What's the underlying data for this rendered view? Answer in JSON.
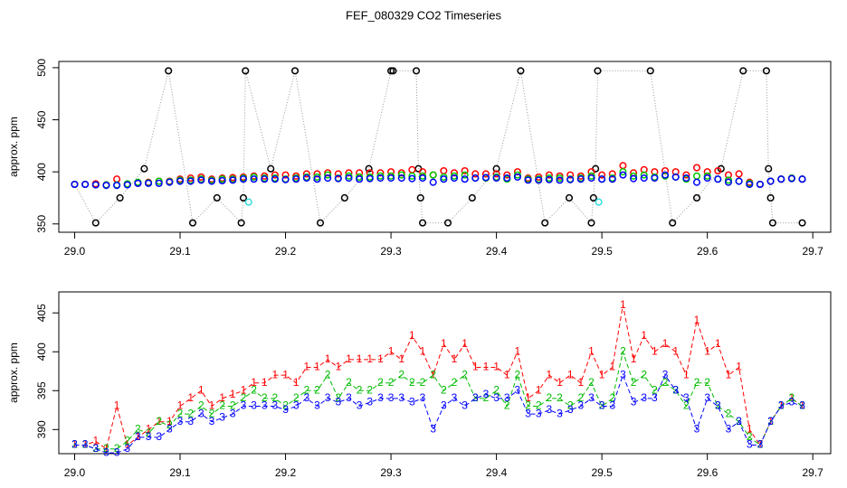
{
  "title": "FEF_080329  CO2 Timeseries",
  "chart_data": [
    {
      "type": "scatter",
      "ylabel": "approx. ppm",
      "xlim": [
        28.985,
        29.717
      ],
      "ylim": [
        342,
        506
      ],
      "xticks": [
        {
          "value": 29,
          "label": "29.0"
        },
        29.1,
        29.2,
        29.3,
        29.4,
        29.5,
        29.6,
        29.7
      ],
      "yticks": [
        350,
        400,
        450,
        500
      ],
      "x": [
        29.0,
        29.01,
        29.02,
        29.03,
        29.04,
        29.05,
        29.06,
        29.07,
        29.08,
        29.09,
        29.1,
        29.11,
        29.12,
        29.13,
        29.14,
        29.15,
        29.16,
        29.17,
        29.18,
        29.19,
        29.2,
        29.21,
        29.22,
        29.23,
        29.24,
        29.25,
        29.26,
        29.27,
        29.28,
        29.29,
        29.3,
        29.31,
        29.32,
        29.33,
        29.34,
        29.35,
        29.36,
        29.37,
        29.38,
        29.39,
        29.4,
        29.41,
        29.42,
        29.43,
        29.44,
        29.45,
        29.46,
        29.47,
        29.48,
        29.49,
        29.5,
        29.51,
        29.52,
        29.53,
        29.54,
        29.55,
        29.56,
        29.57,
        29.58,
        29.59,
        29.6,
        29.61,
        29.62,
        29.63,
        29.64,
        29.65,
        29.66,
        29.67,
        29.68,
        29.69
      ],
      "series": [
        {
          "color": "#000000",
          "linestyle": "dotted",
          "x": [
            29.0,
            29.02,
            29.043,
            29.066,
            29.089,
            29.112,
            29.135,
            29.158,
            29.16,
            29.162,
            29.186,
            29.209,
            29.233,
            29.256,
            29.279,
            29.3,
            29.302,
            29.324,
            29.326,
            29.328,
            29.33,
            29.354,
            29.377,
            29.4,
            29.423,
            29.446,
            29.469,
            29.49,
            29.492,
            29.494,
            29.496,
            29.546,
            29.567,
            29.59,
            29.613,
            29.634,
            29.656,
            29.658,
            29.66,
            29.662,
            29.69
          ],
          "values": [
            388,
            351,
            375,
            403,
            497,
            351,
            375,
            351,
            375,
            497,
            403,
            497,
            351,
            375,
            403,
            497,
            497,
            497,
            403,
            375,
            351,
            351,
            375,
            403,
            497,
            351,
            375,
            351,
            375,
            403,
            497,
            497,
            351,
            375,
            403,
            497,
            497,
            403,
            375,
            351,
            351
          ]
        },
        {
          "color": "#ff0000",
          "values": [
            388,
            388,
            388.5,
            387.5,
            393,
            388,
            389,
            390,
            391,
            391,
            393,
            394,
            395,
            393,
            394,
            394.5,
            395,
            396,
            396,
            397,
            397,
            396,
            398,
            398,
            399,
            398,
            399,
            399,
            399,
            399,
            400,
            399,
            402,
            400,
            397,
            401,
            399,
            401,
            398,
            398,
            398,
            397,
            400,
            394,
            395,
            397,
            396,
            397,
            396,
            400,
            397,
            398,
            406,
            399,
            402,
            400,
            401,
            400,
            397,
            404,
            400,
            401,
            397,
            398,
            390,
            388,
            391,
            393,
            394,
            393
          ]
        },
        {
          "color": "#00cc00",
          "values": [
            388,
            388,
            387.5,
            387.5,
            387.5,
            388.5,
            390,
            389.5,
            391,
            390.5,
            392,
            392,
            393,
            392,
            393,
            393,
            394,
            395,
            394,
            394,
            393,
            394,
            395,
            395,
            397,
            394,
            396,
            395,
            395,
            396,
            396,
            397,
            396,
            396,
            397,
            395,
            396,
            397,
            394,
            394,
            395,
            393,
            397,
            393,
            393,
            394,
            394,
            393,
            394,
            396,
            393,
            394,
            400,
            396,
            397,
            395,
            396,
            395,
            393,
            396,
            396,
            393,
            392,
            391,
            389,
            388,
            391,
            393,
            394,
            393
          ]
        },
        {
          "color": "#0000ff",
          "values": [
            388,
            388,
            387.5,
            387,
            387,
            387.5,
            389,
            389,
            389,
            390,
            391,
            391,
            392,
            391,
            391.5,
            392,
            393,
            393,
            393,
            393,
            392.5,
            393,
            394,
            393,
            394,
            393.5,
            394,
            393,
            393.5,
            394,
            394,
            394,
            393.5,
            394,
            390,
            393,
            394,
            393,
            394,
            394.5,
            394,
            394,
            395,
            392,
            392,
            392.5,
            392,
            392.5,
            393,
            394,
            393,
            393,
            397,
            393.5,
            394,
            394,
            397,
            395,
            394,
            390,
            394,
            393,
            390,
            391,
            388,
            388,
            391,
            393,
            393.5,
            393
          ]
        },
        {
          "color": "#33dddd",
          "x": [
            29.165,
            29.497
          ],
          "values": [
            371,
            371
          ]
        }
      ]
    },
    {
      "type": "line",
      "ylabel": "approx. ppm",
      "xlim": [
        28.985,
        29.717
      ],
      "ylim": [
        386.9,
        407.7
      ],
      "xticks": [
        {
          "value": 29,
          "label": "29.0"
        },
        29.1,
        29.2,
        29.3,
        29.4,
        29.5,
        29.6,
        29.7
      ],
      "yticks": [
        390,
        395,
        400,
        405
      ],
      "x": [
        29.0,
        29.01,
        29.02,
        29.03,
        29.04,
        29.05,
        29.06,
        29.07,
        29.08,
        29.09,
        29.1,
        29.11,
        29.12,
        29.13,
        29.14,
        29.15,
        29.16,
        29.17,
        29.18,
        29.19,
        29.2,
        29.21,
        29.22,
        29.23,
        29.24,
        29.25,
        29.26,
        29.27,
        29.28,
        29.29,
        29.3,
        29.31,
        29.32,
        29.33,
        29.34,
        29.35,
        29.36,
        29.37,
        29.38,
        29.39,
        29.4,
        29.41,
        29.42,
        29.43,
        29.44,
        29.45,
        29.46,
        29.47,
        29.48,
        29.49,
        29.5,
        29.51,
        29.52,
        29.53,
        29.54,
        29.55,
        29.56,
        29.57,
        29.58,
        29.59,
        29.6,
        29.61,
        29.62,
        29.63,
        29.64,
        29.65,
        29.66,
        29.67,
        29.68,
        29.69
      ],
      "series": [
        {
          "color": "#ff0000",
          "marker": "1",
          "linestyle": "dashed",
          "values": [
            388,
            388,
            388.5,
            387.5,
            393,
            388,
            389,
            390,
            391,
            391,
            393,
            394,
            395,
            393,
            394,
            394.5,
            395,
            396,
            396,
            397,
            397,
            396,
            398,
            398,
            399,
            398,
            399,
            399,
            399,
            399,
            400,
            399,
            402,
            400,
            397,
            401,
            399,
            401,
            398,
            398,
            398,
            397,
            400,
            394,
            395,
            397,
            396,
            397,
            396,
            400,
            397,
            398,
            406,
            399,
            402,
            400,
            401,
            400,
            397,
            404,
            400,
            401,
            397,
            398,
            390,
            388,
            391,
            393,
            394,
            393
          ]
        },
        {
          "color": "#00bb00",
          "marker": "2",
          "linestyle": "dashed",
          "values": [
            388,
            388,
            387.5,
            387.5,
            387.5,
            388.5,
            390,
            389.5,
            391,
            390.5,
            392,
            392,
            393,
            392,
            393,
            393,
            394,
            395,
            394,
            394,
            393,
            394,
            395,
            395,
            397,
            394,
            396,
            395,
            395,
            396,
            396,
            397,
            396,
            396,
            397,
            395,
            396,
            397,
            394,
            394,
            395,
            393,
            397,
            393,
            393,
            394,
            394,
            393,
            394,
            396,
            393,
            394,
            400,
            396,
            397,
            395,
            396,
            395,
            393,
            396,
            396,
            393,
            392,
            391,
            389,
            388,
            391,
            393,
            394,
            393
          ]
        },
        {
          "color": "#0000ff",
          "marker": "3",
          "linestyle": "dashed",
          "values": [
            388,
            388,
            387.5,
            387,
            387,
            387.5,
            389,
            389,
            389,
            390,
            391,
            391,
            392,
            391,
            391.5,
            392,
            393,
            393,
            393,
            393,
            392.5,
            393,
            394,
            393,
            394,
            393.5,
            394,
            393,
            393.5,
            394,
            394,
            394,
            393.5,
            394,
            390,
            393,
            394,
            393,
            394,
            394.5,
            394,
            394,
            395,
            392,
            392,
            392.5,
            392,
            392.5,
            393,
            394,
            393,
            393,
            397,
            393.5,
            394,
            394,
            397,
            395,
            394,
            390,
            394,
            393,
            390,
            391,
            388,
            388,
            391,
            393,
            393.5,
            393
          ]
        }
      ]
    }
  ]
}
